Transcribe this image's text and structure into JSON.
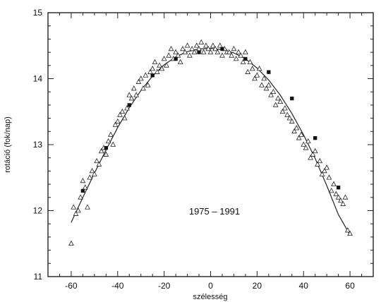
{
  "chart_data": {
    "type": "scatter",
    "title": "",
    "xlabel": "szélesség",
    "ylabel": "rotáció (fok/nap)",
    "annotation": "1975 – 1991",
    "xlim": [
      -70,
      70
    ],
    "ylim": [
      11,
      15
    ],
    "xticks": [
      -60,
      -40,
      -20,
      0,
      20,
      40,
      60
    ],
    "yticks": [
      11,
      12,
      13,
      14,
      15
    ],
    "grid": false,
    "legend": "none",
    "colors": {
      "axis": "#222222",
      "markers": "#222222",
      "fit": "#222222"
    },
    "series": [
      {
        "marker": "triangle-open",
        "points": [
          [
            -60,
            11.5
          ],
          [
            -59,
            12.05
          ],
          [
            -58,
            11.95
          ],
          [
            -57,
            12.0
          ],
          [
            -56,
            12.2
          ],
          [
            -55,
            12.45
          ],
          [
            -54,
            12.35
          ],
          [
            -53,
            12.05
          ],
          [
            -52,
            12.5
          ],
          [
            -51,
            12.6
          ],
          [
            -50,
            12.55
          ],
          [
            -49,
            12.75
          ],
          [
            -48,
            12.7
          ],
          [
            -47,
            12.9
          ],
          [
            -46,
            12.95
          ],
          [
            -45,
            12.85
          ],
          [
            -44,
            13.05
          ],
          [
            -43,
            13.15
          ],
          [
            -42,
            13.0
          ],
          [
            -41,
            13.3
          ],
          [
            -40,
            13.35
          ],
          [
            -39,
            13.45
          ],
          [
            -38,
            13.5
          ],
          [
            -37,
            13.4
          ],
          [
            -36,
            13.55
          ],
          [
            -35,
            13.75
          ],
          [
            -34,
            13.7
          ],
          [
            -33,
            13.85
          ],
          [
            -32,
            13.75
          ],
          [
            -31,
            13.95
          ],
          [
            -30,
            14.0
          ],
          [
            -29,
            13.85
          ],
          [
            -28,
            14.05
          ],
          [
            -27,
            13.9
          ],
          [
            -26,
            14.1
          ],
          [
            -25,
            14.15
          ],
          [
            -24,
            14.25
          ],
          [
            -23,
            14.1
          ],
          [
            -22,
            14.2
          ],
          [
            -21,
            14.15
          ],
          [
            -20,
            14.3
          ],
          [
            -19,
            14.2
          ],
          [
            -18,
            14.35
          ],
          [
            -17,
            14.45
          ],
          [
            -16,
            14.3
          ],
          [
            -15,
            14.4
          ],
          [
            -14,
            14.35
          ],
          [
            -13,
            14.25
          ],
          [
            -12,
            14.45
          ],
          [
            -11,
            14.4
          ],
          [
            -10,
            14.5
          ],
          [
            -9,
            14.35
          ],
          [
            -8,
            14.45
          ],
          [
            -7,
            14.4
          ],
          [
            -6,
            14.5
          ],
          [
            -5,
            14.45
          ],
          [
            -4,
            14.55
          ],
          [
            -3,
            14.4
          ],
          [
            -2,
            14.5
          ],
          [
            -1,
            14.45
          ],
          [
            0,
            14.4
          ],
          [
            1,
            14.5
          ],
          [
            2,
            14.45
          ],
          [
            3,
            14.4
          ],
          [
            4,
            14.5
          ],
          [
            5,
            14.35
          ],
          [
            6,
            14.45
          ],
          [
            7,
            14.4
          ],
          [
            8,
            14.4
          ],
          [
            9,
            14.35
          ],
          [
            10,
            14.45
          ],
          [
            11,
            14.3
          ],
          [
            12,
            14.4
          ],
          [
            13,
            14.35
          ],
          [
            14,
            14.25
          ],
          [
            15,
            14.4
          ],
          [
            16,
            14.1
          ],
          [
            17,
            14.25
          ],
          [
            18,
            14.15
          ],
          [
            19,
            14.0
          ],
          [
            20,
            14.05
          ],
          [
            21,
            14.15
          ],
          [
            22,
            13.9
          ],
          [
            23,
            14.0
          ],
          [
            24,
            13.85
          ],
          [
            25,
            13.9
          ],
          [
            26,
            13.75
          ],
          [
            27,
            13.8
          ],
          [
            28,
            13.6
          ],
          [
            29,
            13.7
          ],
          [
            30,
            13.65
          ],
          [
            31,
            13.5
          ],
          [
            32,
            13.55
          ],
          [
            33,
            13.45
          ],
          [
            34,
            13.4
          ],
          [
            35,
            13.35
          ],
          [
            36,
            13.2
          ],
          [
            37,
            13.25
          ],
          [
            38,
            13.1
          ],
          [
            39,
            13.15
          ],
          [
            40,
            13.0
          ],
          [
            41,
            12.95
          ],
          [
            42,
            13.05
          ],
          [
            43,
            12.8
          ],
          [
            44,
            12.85
          ],
          [
            45,
            12.9
          ],
          [
            46,
            12.7
          ],
          [
            47,
            12.75
          ],
          [
            48,
            12.55
          ],
          [
            49,
            12.6
          ],
          [
            50,
            12.65
          ],
          [
            51,
            12.5
          ],
          [
            52,
            12.3
          ],
          [
            53,
            12.4
          ],
          [
            54,
            12.25
          ],
          [
            55,
            12.2
          ],
          [
            56,
            12.15
          ],
          [
            57,
            12.1
          ],
          [
            58,
            12.2
          ],
          [
            59,
            11.7
          ],
          [
            60,
            11.65
          ]
        ]
      },
      {
        "marker": "square-filled",
        "points": [
          [
            -55,
            12.3
          ],
          [
            -45,
            12.95
          ],
          [
            -35,
            13.6
          ],
          [
            -25,
            14.05
          ],
          [
            -15,
            14.3
          ],
          [
            -5,
            14.4
          ],
          [
            5,
            14.45
          ],
          [
            15,
            14.3
          ],
          [
            25,
            14.1
          ],
          [
            35,
            13.7
          ],
          [
            45,
            13.1
          ],
          [
            55,
            12.35
          ]
        ]
      }
    ],
    "fit_curve": {
      "name": "",
      "points": [
        [
          -60,
          11.82
        ],
        [
          -55,
          12.2
        ],
        [
          -50,
          12.57
        ],
        [
          -45,
          12.92
        ],
        [
          -40,
          13.26
        ],
        [
          -35,
          13.56
        ],
        [
          -30,
          13.82
        ],
        [
          -25,
          14.04
        ],
        [
          -20,
          14.21
        ],
        [
          -15,
          14.33
        ],
        [
          -10,
          14.41
        ],
        [
          -5,
          14.45
        ],
        [
          0,
          14.46
        ],
        [
          5,
          14.44
        ],
        [
          10,
          14.39
        ],
        [
          15,
          14.3
        ],
        [
          20,
          14.16
        ],
        [
          25,
          13.98
        ],
        [
          30,
          13.75
        ],
        [
          35,
          13.47
        ],
        [
          40,
          13.15
        ],
        [
          45,
          12.79
        ],
        [
          50,
          12.38
        ],
        [
          55,
          11.94
        ],
        [
          60,
          11.63
        ]
      ]
    }
  }
}
